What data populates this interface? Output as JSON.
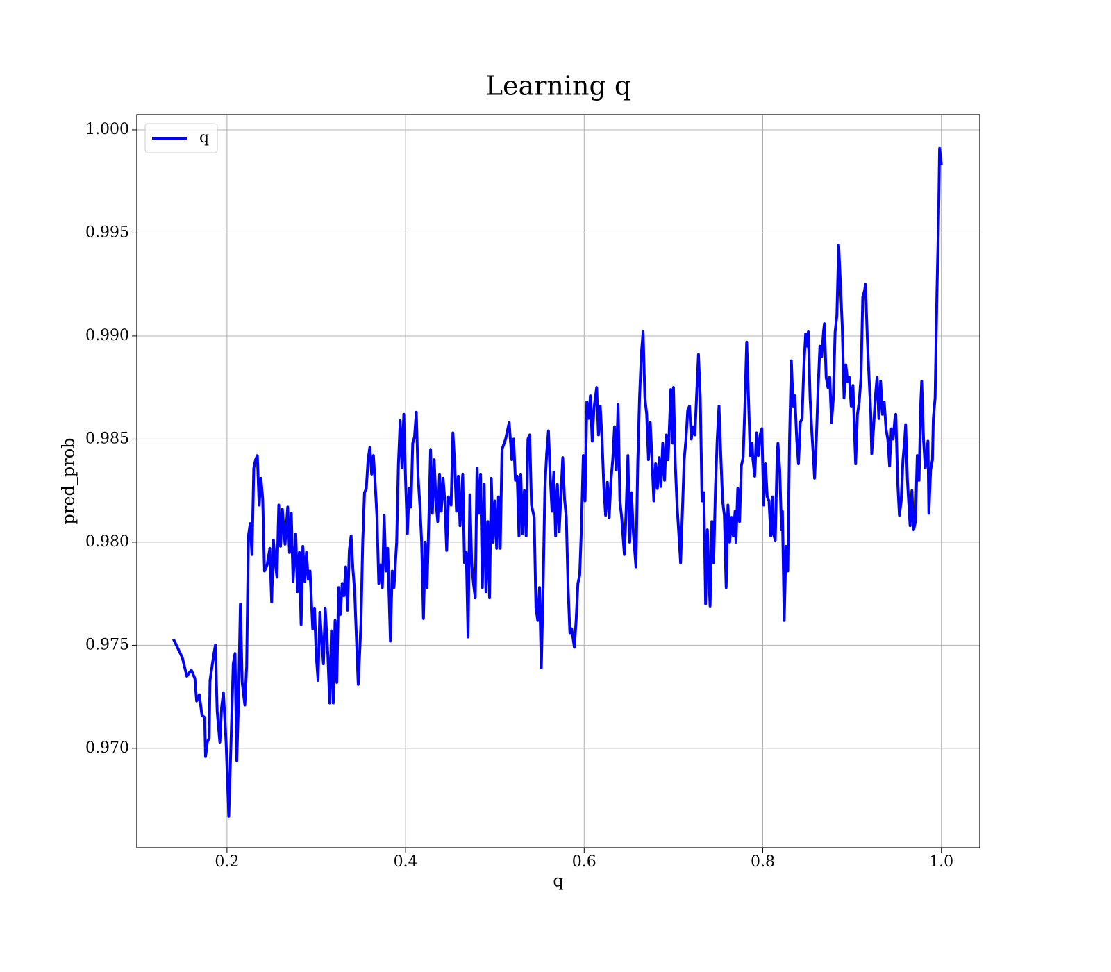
{
  "chart_data": {
    "type": "line",
    "title": "Learning q",
    "xlabel": "q",
    "ylabel": "pred_prob",
    "x": [
      0.14,
      0.15,
      0.155,
      0.16,
      0.164,
      0.166,
      0.169,
      0.172,
      0.175,
      0.176,
      0.178,
      0.18,
      0.181,
      0.185,
      0.187,
      0.189,
      0.192,
      0.194,
      0.196,
      0.199,
      0.202,
      0.205,
      0.207,
      0.209,
      0.211,
      0.213,
      0.215,
      0.217,
      0.22,
      0.222,
      0.224,
      0.226,
      0.228,
      0.23,
      0.232,
      0.234,
      0.236,
      0.238,
      0.24,
      0.242,
      0.245,
      0.248,
      0.25,
      0.252,
      0.254,
      0.256,
      0.258,
      0.26,
      0.262,
      0.265,
      0.268,
      0.27,
      0.272,
      0.274,
      0.277,
      0.279,
      0.281,
      0.283,
      0.285,
      0.287,
      0.289,
      0.291,
      0.293,
      0.296,
      0.298,
      0.3,
      0.302,
      0.304,
      0.306,
      0.308,
      0.31,
      0.313,
      0.315,
      0.317,
      0.319,
      0.321,
      0.323,
      0.325,
      0.327,
      0.329,
      0.331,
      0.333,
      0.335,
      0.337,
      0.339,
      0.341,
      0.343,
      0.345,
      0.347,
      0.35,
      0.352,
      0.354,
      0.356,
      0.358,
      0.36,
      0.362,
      0.364,
      0.366,
      0.368,
      0.37,
      0.372,
      0.374,
      0.376,
      0.378,
      0.38,
      0.383,
      0.385,
      0.387,
      0.39,
      0.392,
      0.394,
      0.396,
      0.398,
      0.4,
      0.402,
      0.404,
      0.406,
      0.408,
      0.41,
      0.412,
      0.414,
      0.416,
      0.418,
      0.42,
      0.422,
      0.424,
      0.426,
      0.428,
      0.43,
      0.432,
      0.434,
      0.436,
      0.438,
      0.44,
      0.442,
      0.444,
      0.446,
      0.448,
      0.451,
      0.453,
      0.455,
      0.457,
      0.459,
      0.461,
      0.464,
      0.466,
      0.468,
      0.47,
      0.472,
      0.474,
      0.476,
      0.478,
      0.48,
      0.482,
      0.484,
      0.486,
      0.488,
      0.49,
      0.492,
      0.494,
      0.496,
      0.498,
      0.5,
      0.502,
      0.504,
      0.506,
      0.508,
      0.512,
      0.516,
      0.519,
      0.521,
      0.523,
      0.525,
      0.527,
      0.529,
      0.531,
      0.533,
      0.535,
      0.537,
      0.539,
      0.541,
      0.544,
      0.546,
      0.548,
      0.55,
      0.552,
      0.554,
      0.556,
      0.558,
      0.56,
      0.562,
      0.564,
      0.566,
      0.568,
      0.57,
      0.572,
      0.574,
      0.576,
      0.578,
      0.58,
      0.582,
      0.584,
      0.586,
      0.589,
      0.591,
      0.593,
      0.595,
      0.597,
      0.599,
      0.601,
      0.603,
      0.605,
      0.607,
      0.609,
      0.611,
      0.614,
      0.616,
      0.618,
      0.62,
      0.622,
      0.624,
      0.626,
      0.628,
      0.63,
      0.632,
      0.634,
      0.636,
      0.638,
      0.64,
      0.642,
      0.645,
      0.647,
      0.649,
      0.651,
      0.653,
      0.655,
      0.658,
      0.66,
      0.662,
      0.664,
      0.666,
      0.668,
      0.67,
      0.672,
      0.674,
      0.676,
      0.678,
      0.68,
      0.682,
      0.684,
      0.686,
      0.688,
      0.69,
      0.692,
      0.694,
      0.696,
      0.697,
      0.699,
      0.7,
      0.702,
      0.704,
      0.706,
      0.708,
      0.71,
      0.712,
      0.714,
      0.716,
      0.718,
      0.72,
      0.722,
      0.724,
      0.726,
      0.728,
      0.73,
      0.732,
      0.734,
      0.736,
      0.738,
      0.74,
      0.741,
      0.743,
      0.745,
      0.747,
      0.749,
      0.751,
      0.753,
      0.755,
      0.757,
      0.759,
      0.761,
      0.763,
      0.765,
      0.767,
      0.769,
      0.77,
      0.772,
      0.774,
      0.776,
      0.778,
      0.78,
      0.782,
      0.784,
      0.786,
      0.788,
      0.789,
      0.791,
      0.793,
      0.795,
      0.797,
      0.799,
      0.801,
      0.803,
      0.805,
      0.807,
      0.809,
      0.811,
      0.812,
      0.814,
      0.816,
      0.817,
      0.819,
      0.821,
      0.822,
      0.824,
      0.826,
      0.828,
      0.83,
      0.832,
      0.834,
      0.836,
      0.838,
      0.84,
      0.842,
      0.844,
      0.846,
      0.848,
      0.85,
      0.851,
      0.853,
      0.855,
      0.857,
      0.858,
      0.86,
      0.862,
      0.864,
      0.866,
      0.868,
      0.869,
      0.871,
      0.873,
      0.875,
      0.877,
      0.879,
      0.881,
      0.883,
      0.885,
      0.887,
      0.889,
      0.891,
      0.893,
      0.895,
      0.897,
      0.899,
      0.901,
      0.903,
      0.904,
      0.906,
      0.908,
      0.91,
      0.912,
      0.914,
      0.915,
      0.917,
      0.919,
      0.921,
      0.922,
      0.924,
      0.926,
      0.928,
      0.93,
      0.932,
      0.934,
      0.936,
      0.938,
      0.94,
      0.942,
      0.944,
      0.946,
      0.948,
      0.949,
      0.951,
      0.953,
      0.955,
      0.957,
      0.959,
      0.96,
      0.962,
      0.964,
      0.965,
      0.967,
      0.969,
      0.971,
      0.973,
      0.975,
      0.977,
      0.978,
      0.98,
      0.982,
      0.984,
      0.985,
      0.986,
      0.988,
      0.99,
      0.991,
      0.993,
      0.995,
      0.997,
      0.998,
      1.0
    ],
    "series": [
      {
        "name": "q",
        "color": "#0000ff",
        "values": [
          0.9753,
          0.9744,
          0.9735,
          0.9738,
          0.9734,
          0.9723,
          0.9726,
          0.9716,
          0.9715,
          0.9696,
          0.9703,
          0.9705,
          0.9733,
          0.9745,
          0.975,
          0.9718,
          0.9703,
          0.972,
          0.9727,
          0.9703,
          0.9667,
          0.971,
          0.9741,
          0.9746,
          0.9694,
          0.9725,
          0.977,
          0.9732,
          0.9721,
          0.974,
          0.9803,
          0.9809,
          0.9794,
          0.9836,
          0.984,
          0.9842,
          0.9818,
          0.9831,
          0.9821,
          0.9786,
          0.9789,
          0.9797,
          0.9771,
          0.9801,
          0.979,
          0.9783,
          0.9818,
          0.9798,
          0.9816,
          0.9799,
          0.9817,
          0.9795,
          0.9814,
          0.9781,
          0.9804,
          0.9776,
          0.9795,
          0.976,
          0.9798,
          0.9781,
          0.9795,
          0.9782,
          0.9786,
          0.9758,
          0.9768,
          0.9745,
          0.9733,
          0.9766,
          0.9753,
          0.9741,
          0.9768,
          0.9745,
          0.9722,
          0.9757,
          0.9722,
          0.9762,
          0.9732,
          0.9778,
          0.9765,
          0.978,
          0.9774,
          0.9788,
          0.9767,
          0.9796,
          0.9803,
          0.9787,
          0.9776,
          0.9753,
          0.9731,
          0.976,
          0.98,
          0.9824,
          0.9826,
          0.984,
          0.9846,
          0.9833,
          0.9842,
          0.9828,
          0.9812,
          0.978,
          0.9789,
          0.9778,
          0.9813,
          0.9786,
          0.9797,
          0.9752,
          0.9786,
          0.9778,
          0.98,
          0.9838,
          0.9859,
          0.9836,
          0.9862,
          0.983,
          0.9804,
          0.9826,
          0.9817,
          0.9848,
          0.9851,
          0.9863,
          0.9832,
          0.9818,
          0.98,
          0.9763,
          0.98,
          0.9778,
          0.981,
          0.9845,
          0.9814,
          0.984,
          0.982,
          0.981,
          0.9833,
          0.9815,
          0.9831,
          0.982,
          0.9796,
          0.9822,
          0.9818,
          0.9853,
          0.9838,
          0.9815,
          0.9832,
          0.9808,
          0.9833,
          0.979,
          0.9795,
          0.9754,
          0.9823,
          0.979,
          0.978,
          0.9773,
          0.9836,
          0.9814,
          0.9833,
          0.9778,
          0.9828,
          0.9776,
          0.981,
          0.9773,
          0.9831,
          0.98,
          0.982,
          0.9797,
          0.9822,
          0.9797,
          0.9845,
          0.985,
          0.9858,
          0.984,
          0.985,
          0.983,
          0.9832,
          0.9803,
          0.9833,
          0.9804,
          0.9825,
          0.9803,
          0.985,
          0.9852,
          0.9818,
          0.9812,
          0.9768,
          0.9762,
          0.9778,
          0.9739,
          0.9778,
          0.9826,
          0.9843,
          0.9854,
          0.9832,
          0.9815,
          0.9834,
          0.9803,
          0.9828,
          0.9805,
          0.9823,
          0.9841,
          0.9821,
          0.9812,
          0.9778,
          0.9756,
          0.9758,
          0.9749,
          0.9762,
          0.978,
          0.9784,
          0.9808,
          0.9842,
          0.982,
          0.9868,
          0.986,
          0.9871,
          0.9849,
          0.9865,
          0.9875,
          0.9852,
          0.9866,
          0.985,
          0.9827,
          0.9813,
          0.9829,
          0.9812,
          0.983,
          0.984,
          0.9856,
          0.9835,
          0.9867,
          0.982,
          0.9812,
          0.9794,
          0.9815,
          0.9842,
          0.98,
          0.9824,
          0.9805,
          0.9788,
          0.9838,
          0.987,
          0.9891,
          0.9902,
          0.987,
          0.9862,
          0.984,
          0.9858,
          0.984,
          0.982,
          0.9838,
          0.9826,
          0.9841,
          0.9827,
          0.9848,
          0.983,
          0.9852,
          0.984,
          0.9862,
          0.9874,
          0.9848,
          0.9875,
          0.9838,
          0.9818,
          0.9804,
          0.979,
          0.9815,
          0.984,
          0.985,
          0.9864,
          0.9866,
          0.985,
          0.9856,
          0.9852,
          0.9872,
          0.9891,
          0.987,
          0.982,
          0.9824,
          0.977,
          0.9806,
          0.978,
          0.9769,
          0.981,
          0.979,
          0.9826,
          0.985,
          0.9866,
          0.9842,
          0.982,
          0.9813,
          0.9778,
          0.9818,
          0.98,
          0.9812,
          0.9803,
          0.9815,
          0.98,
          0.9826,
          0.981,
          0.9837,
          0.9841,
          0.9866,
          0.9897,
          0.987,
          0.9842,
          0.9848,
          0.984,
          0.9832,
          0.9853,
          0.9842,
          0.9852,
          0.9855,
          0.9818,
          0.9838,
          0.9822,
          0.982,
          0.9803,
          0.9822,
          0.9804,
          0.9801,
          0.984,
          0.9848,
          0.9835,
          0.9806,
          0.9815,
          0.9762,
          0.9798,
          0.9786,
          0.985,
          0.9888,
          0.9866,
          0.9871,
          0.985,
          0.9838,
          0.9858,
          0.986,
          0.9885,
          0.9901,
          0.9895,
          0.9902,
          0.987,
          0.9853,
          0.9839,
          0.9831,
          0.985,
          0.9875,
          0.9895,
          0.989,
          0.9902,
          0.9906,
          0.988,
          0.9875,
          0.988,
          0.9858,
          0.987,
          0.9902,
          0.991,
          0.9944,
          0.9925,
          0.9905,
          0.987,
          0.9886,
          0.9878,
          0.988,
          0.9866,
          0.9876,
          0.985,
          0.9838,
          0.9862,
          0.9868,
          0.988,
          0.9919,
          0.9922,
          0.9925,
          0.99,
          0.988,
          0.9862,
          0.9843,
          0.9855,
          0.987,
          0.988,
          0.986,
          0.9878,
          0.9862,
          0.9868,
          0.9855,
          0.985,
          0.9837,
          0.9855,
          0.985,
          0.986,
          0.9862,
          0.983,
          0.9813,
          0.982,
          0.984,
          0.985,
          0.9857,
          0.983,
          0.9815,
          0.9808,
          0.9825,
          0.9806,
          0.981,
          0.9842,
          0.983,
          0.9868,
          0.9878,
          0.985,
          0.9836,
          0.9845,
          0.9849,
          0.9814,
          0.9835,
          0.984,
          0.986,
          0.987,
          0.992,
          0.996,
          0.9991,
          0.9983
        ]
      }
    ],
    "xlim": [
      0.099,
      1.043
    ],
    "ylim": [
      0.96518,
      1.00074
    ],
    "xticks": [
      0.2,
      0.4,
      0.6,
      0.8,
      {
        "value": 1,
        "label": "1.0"
      }
    ],
    "yticks": [
      {
        "value": 0.97,
        "label": "0.970"
      },
      0.975,
      {
        "value": 0.98,
        "label": "0.980"
      },
      0.985,
      {
        "value": 0.99,
        "label": "0.990"
      },
      0.995,
      {
        "value": 1,
        "label": "1.000"
      }
    ],
    "grid": true,
    "legend": "upper left"
  }
}
